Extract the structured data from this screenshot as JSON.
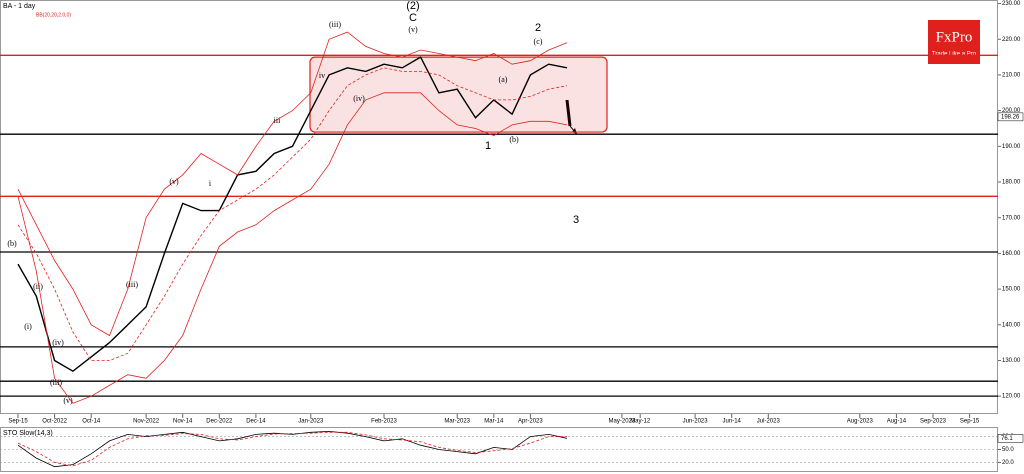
{
  "chart_data": [
    {
      "type": "line",
      "title": "BA - 1 day",
      "indicator_label": "BB(20,20,2.0,0)",
      "logo": {
        "brand": "FxPro",
        "tagline": "Trade Like a Pro"
      },
      "categories": [
        "Sep-15",
        null,
        "Oct-2022",
        null,
        "Oct-14",
        null,
        null,
        "Nov-2022",
        null,
        "Nov-14",
        null,
        "Dec-2022",
        null,
        "Dec-14",
        null,
        null,
        "Jan-2023",
        null,
        null,
        null,
        "Feb-2023",
        null,
        null,
        null,
        "Mar-2023",
        null,
        "Mar-14",
        null,
        "Apr-2023",
        null,
        null,
        null,
        null,
        "May-2023",
        "May-12",
        null,
        null,
        "Jun-2023",
        null,
        "Jun-14",
        null,
        "Jul-2023",
        null,
        null,
        null,
        null,
        "Aug-2023",
        null,
        "Aug-14",
        null,
        "Sep-2023",
        null,
        "Sep-15"
      ],
      "series": [
        {
          "color": "#000000",
          "width": 1.4,
          "dashed": false,
          "values": [
            157,
            148,
            130,
            127,
            131,
            135,
            140,
            145,
            160,
            174,
            172,
            172,
            182,
            183,
            188,
            190,
            200,
            210,
            212,
            211,
            213,
            212,
            215,
            205,
            206,
            198,
            203,
            199,
            210,
            213,
            212,
            null,
            null,
            null,
            null,
            null,
            null,
            null,
            null,
            null,
            null,
            null,
            null,
            null,
            null,
            null,
            null,
            null,
            null,
            null,
            null,
            null,
            null
          ]
        },
        {
          "color": "#e0201c",
          "width": 0.8,
          "dashed": false,
          "values": [
            178,
            168,
            158,
            150,
            140,
            137,
            150,
            170,
            178,
            182,
            188,
            185,
            182,
            190,
            197,
            200,
            205,
            220,
            222,
            218,
            216,
            215,
            217,
            216,
            215,
            214,
            216,
            213,
            214,
            217,
            219,
            null,
            null,
            null,
            null,
            null,
            null,
            null,
            null,
            null,
            null,
            null,
            null,
            null,
            null,
            null,
            null,
            null,
            null,
            null,
            null,
            null,
            null
          ]
        },
        {
          "color": "#e0201c",
          "width": 0.8,
          "dashed": true,
          "values": [
            168,
            160,
            150,
            138,
            130,
            130,
            132,
            140,
            148,
            157,
            165,
            172,
            175,
            178,
            182,
            187,
            192,
            200,
            207,
            210,
            212,
            211,
            211,
            210,
            207,
            205,
            203,
            203,
            204,
            206,
            207,
            null,
            null,
            null,
            null,
            null,
            null,
            null,
            null,
            null,
            null,
            null,
            null,
            null,
            null,
            null,
            null,
            null,
            null,
            null,
            null,
            null,
            null
          ]
        },
        {
          "color": "#e0201c",
          "width": 0.8,
          "dashed": false,
          "values": [
            176,
            155,
            125,
            118,
            120,
            123,
            126,
            125,
            130,
            137,
            150,
            162,
            166,
            168,
            172,
            175,
            178,
            185,
            196,
            203,
            205,
            205,
            205,
            200,
            196,
            195,
            193,
            196,
            197,
            197,
            196,
            null,
            null,
            null,
            null,
            null,
            null,
            null,
            null,
            null,
            null,
            null,
            null,
            null,
            null,
            null,
            null,
            null,
            null,
            null,
            null,
            null,
            null
          ]
        }
      ],
      "levels": [
        {
          "value": 215.5,
          "color": "#e0201c"
        },
        {
          "value": 176,
          "color": "#e0201c"
        },
        {
          "value": 193.4,
          "color": "#000000"
        },
        {
          "value": 160.4,
          "color": "#000000"
        },
        {
          "value": 133.8,
          "color": "#000000"
        },
        {
          "value": 124.2,
          "color": "#000000"
        },
        {
          "value": 120,
          "color": "#000000"
        }
      ],
      "zone": {
        "ymin": 194,
        "ymax": 215,
        "color": "#e0201c"
      },
      "price_marker": {
        "value": 198.26,
        "label": "198.26"
      },
      "annotations": [
        "(2)",
        "C",
        "2",
        "1",
        "3",
        "(v)",
        "(c)",
        "(b)",
        "(a)",
        "(iii)",
        "iv",
        "(iv)",
        "(b)",
        "(iv)",
        "(iii)",
        "(v)",
        "(i)",
        "(ii)",
        "(iii)",
        "i",
        "(v)",
        "iii"
      ],
      "ylim": [
        115,
        231
      ],
      "yticks": [
        {
          "value": 230,
          "label": "230.00"
        },
        {
          "value": 220,
          "label": "220.00"
        },
        {
          "value": 210,
          "label": "210.00"
        },
        {
          "value": 200,
          "label": "200.00"
        },
        {
          "value": 190,
          "label": "190.00"
        },
        {
          "value": 180,
          "label": "180.00"
        },
        {
          "value": 170,
          "label": "170.00"
        },
        {
          "value": 160,
          "label": "160.00"
        },
        {
          "value": 150,
          "label": "150.00"
        },
        {
          "value": 140,
          "label": "140.00"
        },
        {
          "value": 130,
          "label": "130.00"
        },
        {
          "value": 120,
          "label": "120.00"
        }
      ],
      "grid": false
    },
    {
      "type": "line",
      "title": "STO Slow(14,3)",
      "series": [
        {
          "color": "#000000",
          "width": 0.8,
          "dashed": false,
          "values": [
            60,
            30,
            10,
            15,
            40,
            70,
            85,
            80,
            85,
            90,
            80,
            70,
            75,
            85,
            88,
            85,
            90,
            92,
            88,
            80,
            70,
            75,
            60,
            50,
            45,
            40,
            55,
            50,
            80,
            85,
            76.1,
            null,
            null,
            null,
            null,
            null,
            null,
            null,
            null,
            null,
            null,
            null,
            null,
            null,
            null,
            null,
            null,
            null,
            null,
            null,
            null,
            null,
            null
          ]
        },
        {
          "color": "#e0201c",
          "width": 0.8,
          "dashed": true,
          "values": [
            65,
            45,
            20,
            12,
            25,
            55,
            75,
            82,
            83,
            87,
            85,
            75,
            72,
            80,
            86,
            87,
            88,
            90,
            90,
            84,
            75,
            72,
            68,
            55,
            48,
            43,
            47,
            52,
            65,
            80,
            80,
            null,
            null,
            null,
            null,
            null,
            null,
            null,
            null,
            null,
            null,
            null,
            null,
            null,
            null,
            null,
            null,
            null,
            null,
            null,
            null,
            null,
            null
          ]
        }
      ],
      "last_value": 76.1,
      "ylim": [
        0,
        100
      ],
      "yticks": [
        {
          "value": 80,
          "label": "80.0"
        },
        {
          "value": 50,
          "label": "50.0"
        },
        {
          "value": 20,
          "label": "20.0"
        }
      ],
      "grid": true
    }
  ]
}
